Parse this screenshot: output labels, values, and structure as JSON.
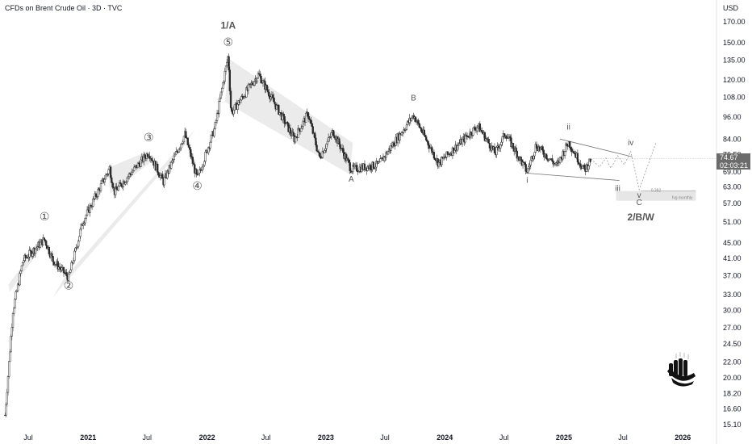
{
  "header": {
    "title": "CFDs on Brent Crude Oil · 3D · TVC",
    "currency": "USD"
  },
  "price_label": {
    "price": "74.67",
    "countdown": "02:03:21"
  },
  "chart_data": {
    "type": "candlestick",
    "yscale": "log",
    "ylim": [
      15.1,
      180
    ],
    "y_ticks": [
      "170.00",
      "150.00",
      "135.00",
      "120.00",
      "108.00",
      "96.00",
      "84.00",
      "76.50",
      "69.00",
      "63.00",
      "57.00",
      "51.00",
      "45.00",
      "41.00",
      "37.00",
      "33.00",
      "30.00",
      "27.00",
      "24.50",
      "22.00",
      "20.00",
      "18.20",
      "16.60",
      "15.10"
    ],
    "x_ticks": [
      {
        "label": "Jul",
        "major": false
      },
      {
        "label": "2021",
        "major": true
      },
      {
        "label": "Jul",
        "major": false
      },
      {
        "label": "2022",
        "major": true
      },
      {
        "label": "Jul",
        "major": false
      },
      {
        "label": "2023",
        "major": true
      },
      {
        "label": "Jul",
        "major": false
      },
      {
        "label": "2024",
        "major": true
      },
      {
        "label": "Jul",
        "major": false
      },
      {
        "label": "2025",
        "major": true
      },
      {
        "label": "Jul",
        "major": false
      },
      {
        "label": "2026",
        "major": true
      }
    ],
    "price_path": [
      {
        "date": "2020-04-21",
        "price": 16.0
      },
      {
        "date": "2020-05-15",
        "price": 30.0
      },
      {
        "date": "2020-06-15",
        "price": 40.5
      },
      {
        "date": "2020-08-20",
        "price": 46.0
      },
      {
        "date": "2020-09-15",
        "price": 40.5
      },
      {
        "date": "2020-11-02",
        "price": 36.5
      },
      {
        "date": "2020-12-15",
        "price": 51.0
      },
      {
        "date": "2021-03-08",
        "price": 70.5
      },
      {
        "date": "2021-03-22",
        "price": 61.0
      },
      {
        "date": "2021-07-06",
        "price": 77.5
      },
      {
        "date": "2021-08-20",
        "price": 65.0
      },
      {
        "date": "2021-10-25",
        "price": 86.5
      },
      {
        "date": "2021-12-02",
        "price": 66.0
      },
      {
        "date": "2022-01-25",
        "price": 90.0
      },
      {
        "date": "2022-03-07",
        "price": 139.0
      },
      {
        "date": "2022-03-16",
        "price": 98.0
      },
      {
        "date": "2022-06-08",
        "price": 124.0
      },
      {
        "date": "2022-09-26",
        "price": 84.0
      },
      {
        "date": "2022-11-07",
        "price": 98.0
      },
      {
        "date": "2022-12-12",
        "price": 75.0
      },
      {
        "date": "2023-01-23",
        "price": 88.0
      },
      {
        "date": "2023-03-20",
        "price": 70.0
      },
      {
        "date": "2023-06-12",
        "price": 72.0
      },
      {
        "date": "2023-09-27",
        "price": 97.0
      },
      {
        "date": "2023-12-13",
        "price": 72.5
      },
      {
        "date": "2024-04-12",
        "price": 91.0
      },
      {
        "date": "2024-06-04",
        "price": 77.0
      },
      {
        "date": "2024-07-05",
        "price": 87.0
      },
      {
        "date": "2024-09-10",
        "price": 69.0
      },
      {
        "date": "2024-10-07",
        "price": 81.0
      },
      {
        "date": "2024-12-10",
        "price": 71.5
      },
      {
        "date": "2025-01-15",
        "price": 82.5
      },
      {
        "date": "2025-03-05",
        "price": 69.5
      },
      {
        "date": "2025-03-25",
        "price": 74.67
      }
    ],
    "projection": [
      {
        "date": "2025-03-25",
        "price": 74.67
      },
      {
        "date": "2025-04-20",
        "price": 71.0
      },
      {
        "date": "2025-05-10",
        "price": 75.0
      },
      {
        "date": "2025-05-25",
        "price": 70.5
      },
      {
        "date": "2025-06-15",
        "price": 76.0
      },
      {
        "date": "2025-07-05",
        "price": 72.0
      },
      {
        "date": "2025-07-25",
        "price": 78.0
      },
      {
        "date": "2025-08-20",
        "price": 62.0
      },
      {
        "date": "2025-10-10",
        "price": 82.0
      }
    ],
    "wave_labels": [
      {
        "text": "①",
        "date": "2020-08-20",
        "price": 51.5
      },
      {
        "text": "②",
        "date": "2020-11-02",
        "price": 34.0
      },
      {
        "text": "③",
        "date": "2021-07-06",
        "price": 83.0
      },
      {
        "text": "④",
        "date": "2021-12-02",
        "price": 62.0
      },
      {
        "text": "⑤",
        "date": "2022-03-07",
        "price": 147.0
      },
      {
        "text": "1/A",
        "date": "2022-03-07",
        "price": 163.0
      },
      {
        "text": "A",
        "date": "2023-03-20",
        "price": 65.0
      },
      {
        "text": "B",
        "date": "2023-09-27",
        "price": 106.0
      },
      {
        "text": "i",
        "date": "2024-09-10",
        "price": 64.5
      },
      {
        "text": "ii",
        "date": "2025-01-15",
        "price": 89.0
      },
      {
        "text": "iii",
        "date": "2025-06-15",
        "price": 61.5
      },
      {
        "text": "iv",
        "date": "2025-07-25",
        "price": 81.0
      },
      {
        "text": "v",
        "date": "2025-08-20",
        "price": 59.0
      },
      {
        "text": "C",
        "date": "2025-08-20",
        "price": 56.5
      },
      {
        "text": "2/B/W",
        "date": "2025-08-25",
        "price": 51.5
      }
    ],
    "fvg_zone": {
      "label": "fvg monthly",
      "fib": "0.382",
      "top": 61.5,
      "bottom": 58.0,
      "from": "2025-06-10",
      "to": "2026-02-10"
    },
    "colors": {
      "candle": "#2b2b2b",
      "channel": "#ebebeb",
      "zone": "#e6e6e6",
      "wave_text": "#555555",
      "muted_text": "#c8c8c8"
    }
  }
}
